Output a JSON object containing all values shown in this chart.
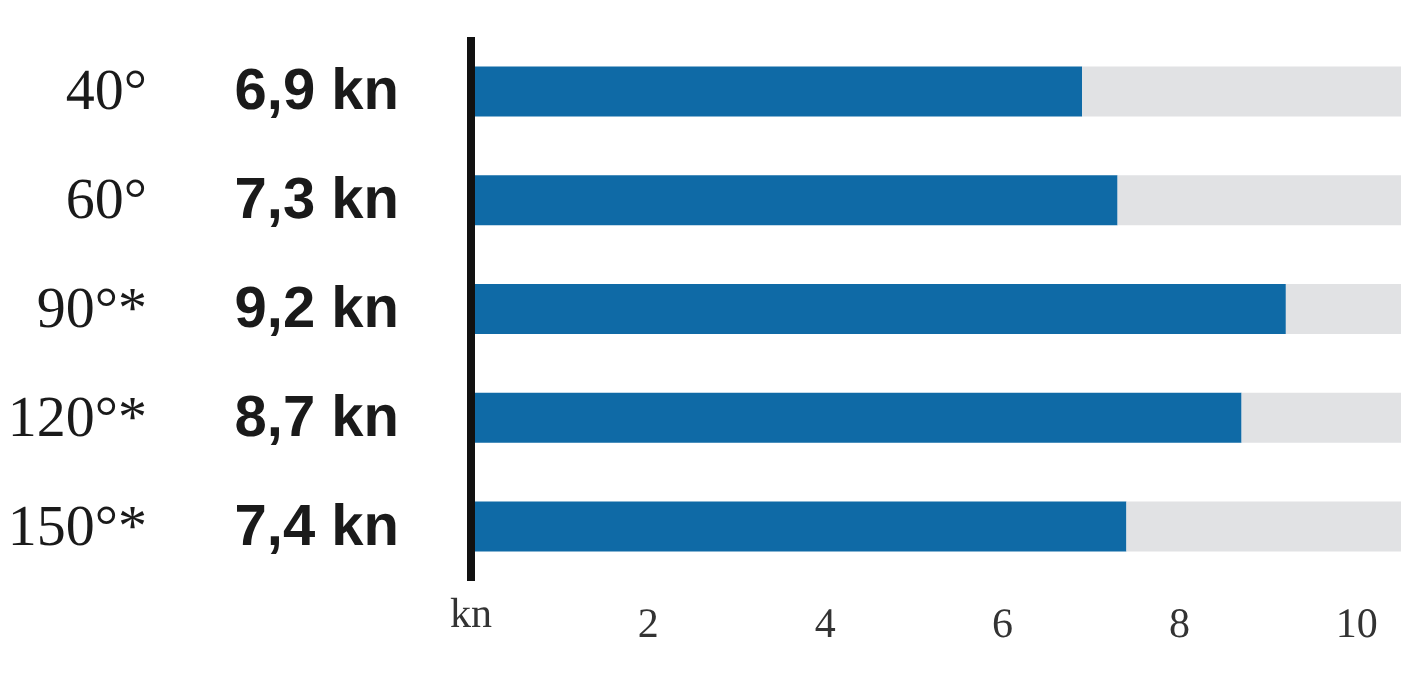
{
  "chart_data": {
    "type": "bar",
    "orientation": "horizontal",
    "stacked": true,
    "categories": [
      "40°",
      "60°",
      "90°*",
      "120°*",
      "150°*"
    ],
    "series": [
      {
        "color": "#0f6aa6",
        "values": [
          6.9,
          7.3,
          9.2,
          8.7,
          7.4
        ],
        "value_labels": [
          "6,9 kn",
          "7,3 kn",
          "9,2 kn",
          "8,7 kn",
          "7,4 kn"
        ]
      },
      {
        "color": "#e1e2e4",
        "values": [
          3.6,
          3.2,
          1.3,
          1.8,
          3.1
        ]
      }
    ],
    "xlim": [
      0,
      10.5
    ],
    "xticks": [
      2,
      4,
      6,
      8,
      10
    ],
    "xlabel": "kn"
  }
}
